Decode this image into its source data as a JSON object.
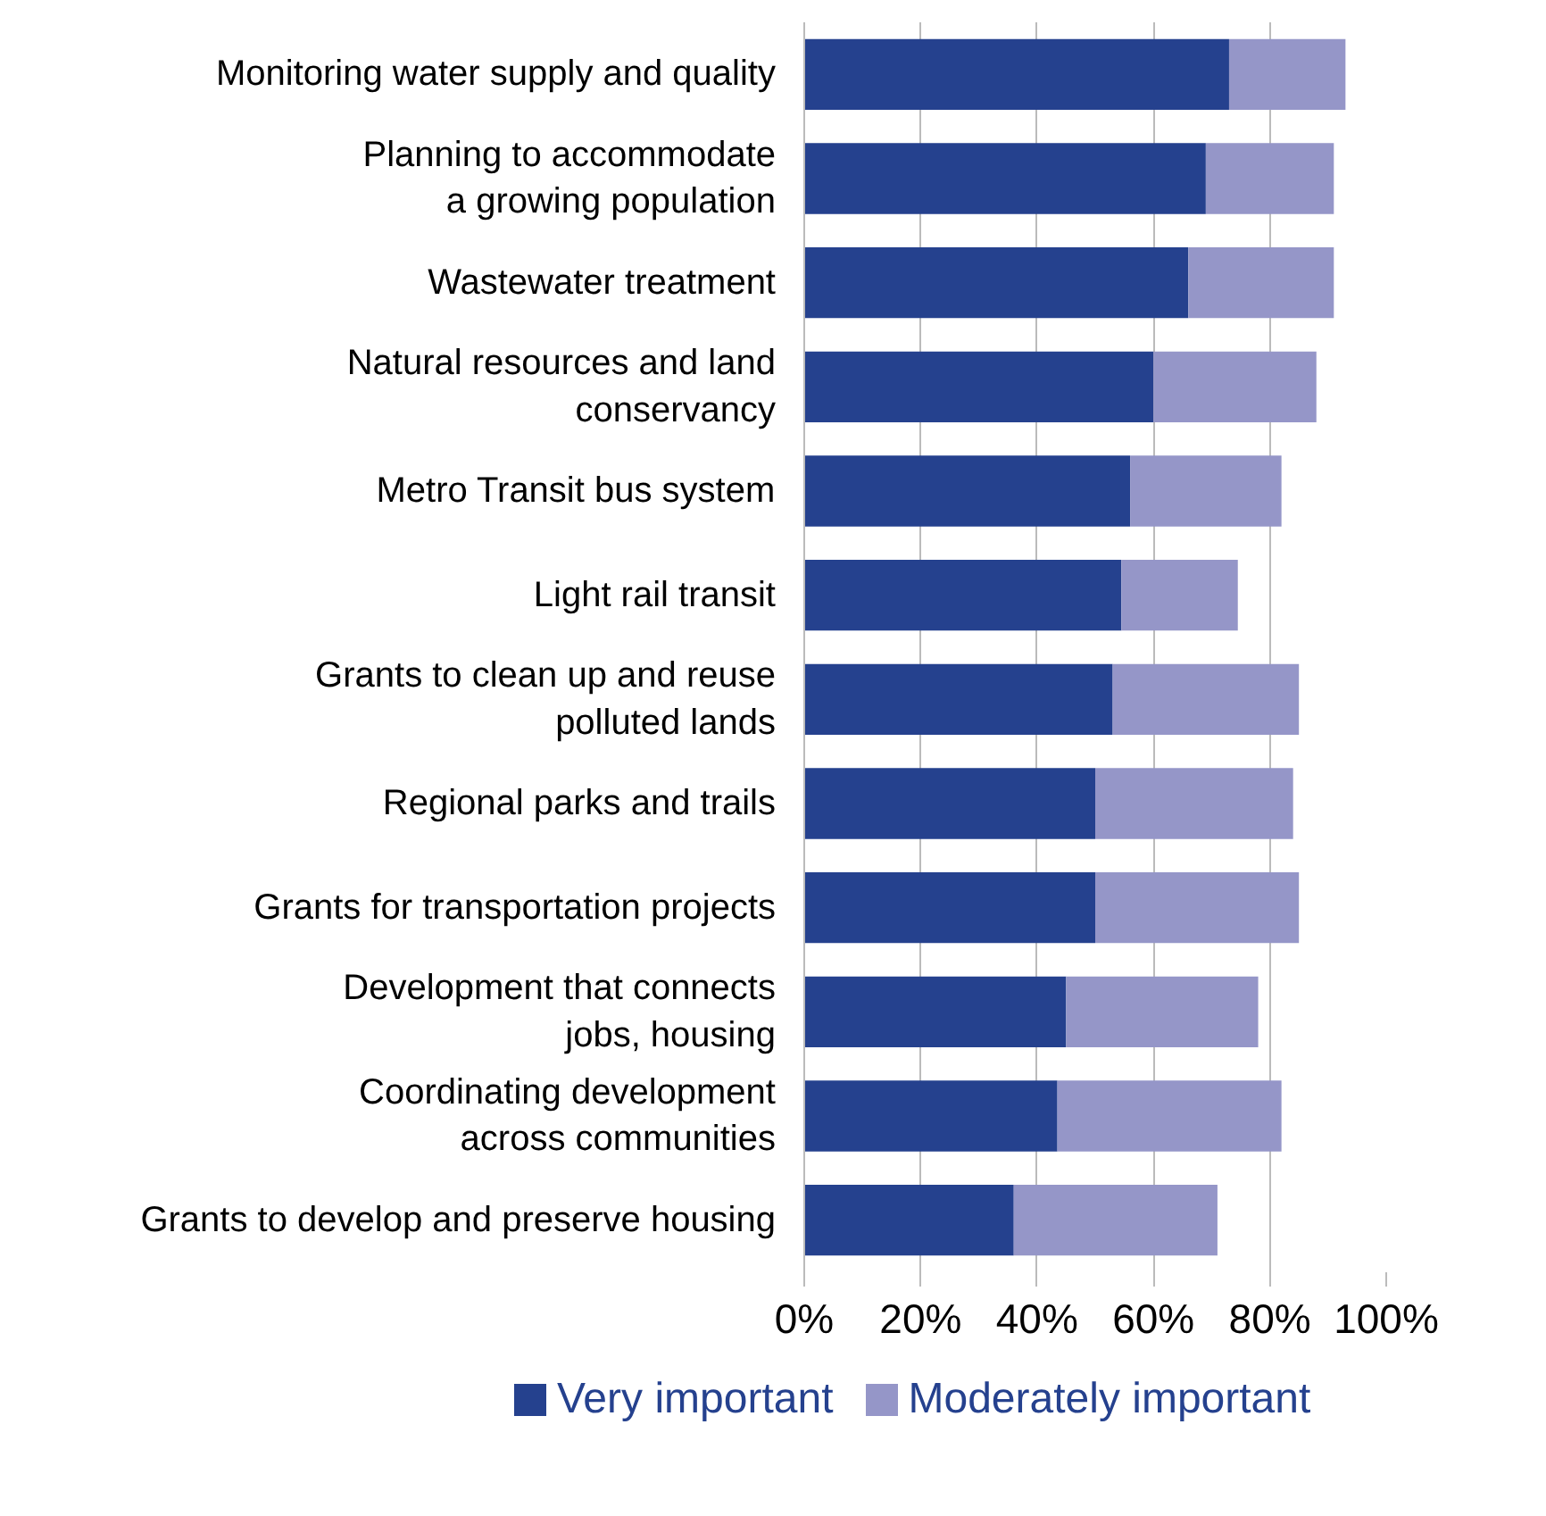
{
  "chart_data": {
    "type": "bar",
    "orientation": "horizontal",
    "stacked": true,
    "categories": [
      "Monitoring water supply and quality",
      "Planning to accommodate\na growing population",
      "Wastewater treatment",
      "Natural resources and land\nconservancy",
      "Metro Transit bus system",
      "Light rail transit",
      "Grants to clean up and reuse\npolluted lands",
      "Regional parks and trails",
      "Grants for transportation projects",
      "Development that connects\njobs, housing",
      "Coordinating development\nacross communities",
      "Grants to develop and preserve housing"
    ],
    "series": [
      {
        "name": "Very important",
        "color": "#25418e",
        "values": [
          73,
          69,
          66,
          60,
          56,
          54.5,
          53,
          50,
          50,
          45,
          43.5,
          36
        ]
      },
      {
        "name": "Moderately important",
        "color": "#9596c8",
        "values": [
          20,
          22,
          25,
          28,
          26,
          20,
          32,
          34,
          35,
          33,
          38.5,
          35
        ]
      }
    ],
    "xlim": [
      0,
      100
    ],
    "xticks": [
      {
        "value": 0,
        "label": "0%"
      },
      {
        "value": 20,
        "label": "20%"
      },
      {
        "value": 40,
        "label": "40%"
      },
      {
        "value": 60,
        "label": "60%"
      },
      {
        "value": 80,
        "label": "80%"
      },
      {
        "value": 100,
        "label": "100%"
      }
    ],
    "grid": "x",
    "legend": "bottom"
  }
}
